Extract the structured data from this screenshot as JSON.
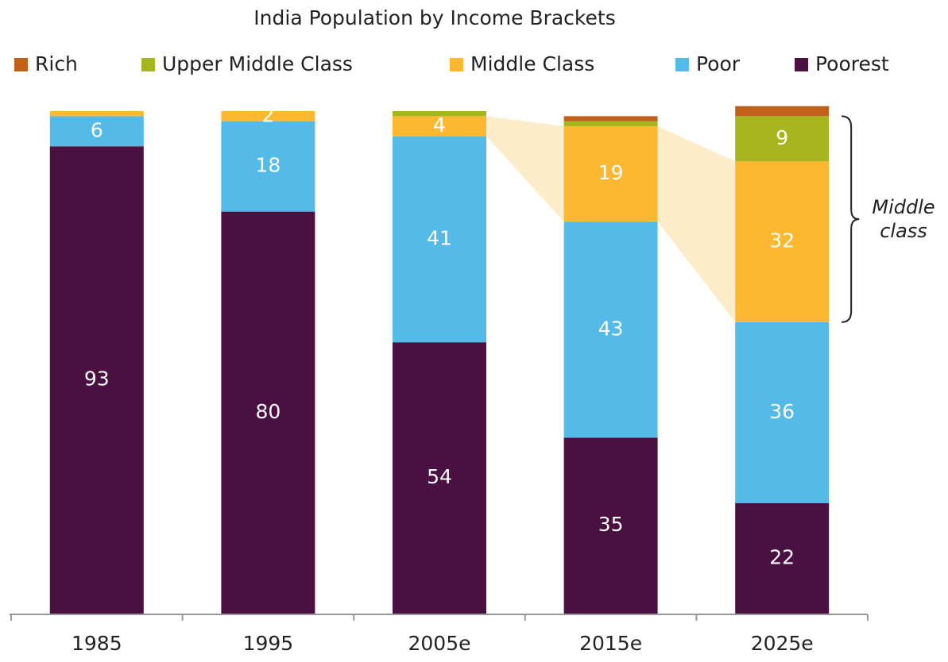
{
  "chart_data": {
    "type": "stacked_bar",
    "title": "India Population by Income Brackets",
    "categories": [
      "1985",
      "1995",
      "2005e",
      "2015e",
      "2025e"
    ],
    "series": [
      {
        "name": "Rich",
        "color": "#c0601a",
        "values": [
          0,
          0,
          0,
          1,
          2
        ],
        "value_labels": [
          null,
          null,
          null,
          null,
          null
        ]
      },
      {
        "name": "Upper Middle Class",
        "color": "#a6b51e",
        "values": [
          0,
          0,
          1,
          1,
          9
        ],
        "value_labels": [
          null,
          null,
          null,
          null,
          "9"
        ]
      },
      {
        "name": "Middle Class",
        "color": "#fbb830",
        "values": [
          1,
          2,
          4,
          19,
          32
        ],
        "value_labels": [
          null,
          "2",
          "4",
          "19",
          "32"
        ]
      },
      {
        "name": "Poor",
        "color": "#54bbe9",
        "values": [
          6,
          18,
          41,
          43,
          36
        ],
        "value_labels": [
          "6",
          "18",
          "41",
          "43",
          "36"
        ]
      },
      {
        "name": "Poorest",
        "color": "#4a1042",
        "values": [
          93,
          80,
          54,
          35,
          22
        ],
        "value_labels": [
          "93",
          "80",
          "54",
          "35",
          "22"
        ]
      }
    ],
    "ylim": [
      0,
      100
    ],
    "annotation": "Middle class"
  }
}
